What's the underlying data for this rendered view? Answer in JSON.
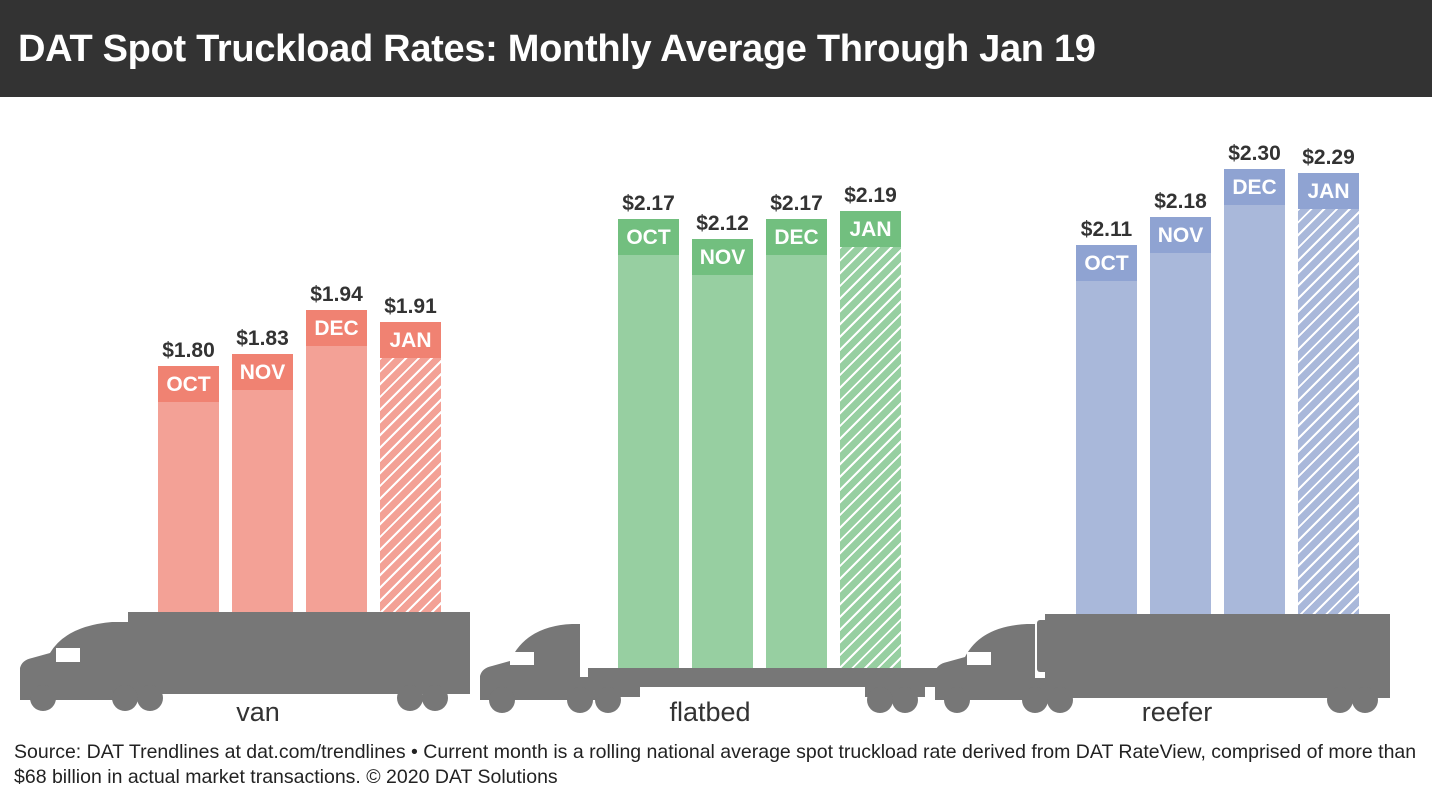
{
  "chart_data": {
    "type": "bar",
    "title": "DAT Spot Truckload Rates: Monthly Average Through Jan 19",
    "categories": [
      "OCT",
      "NOV",
      "DEC",
      "JAN"
    ],
    "series": [
      {
        "name": "van",
        "values": [
          1.8,
          1.83,
          1.94,
          1.91
        ],
        "labels": [
          "$1.80",
          "$1.83",
          "$1.94",
          "$1.91"
        ],
        "color": "#f3a196",
        "band_color": "#f08272"
      },
      {
        "name": "flatbed",
        "values": [
          2.17,
          2.12,
          2.17,
          2.19
        ],
        "labels": [
          "$2.17",
          "$2.12",
          "$2.17",
          "$2.19"
        ],
        "color": "#97cfa1",
        "band_color": "#72bf7f"
      },
      {
        "name": "reefer",
        "values": [
          2.11,
          2.18,
          2.3,
          2.29
        ],
        "labels": [
          "$2.11",
          "$2.18",
          "$2.30",
          "$2.29"
        ],
        "color": "#a9b8da",
        "band_color": "#8fa3d2"
      }
    ],
    "hatched_category": "JAN",
    "grid": false,
    "truck_color": "#777777"
  },
  "footer": {
    "source": "Source: DAT Trendlines at dat.com/trendlines • Current month is a rolling national average spot truckload rate derived from DAT RateView, comprised of more than $68 billion in actual market transactions. © 2020 DAT Solutions"
  }
}
